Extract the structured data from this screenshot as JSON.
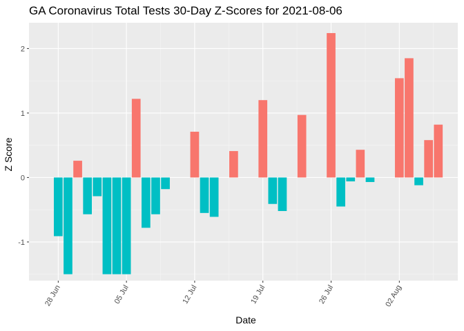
{
  "chart_data": {
    "type": "bar",
    "title": "GA Coronavirus Total Tests 30-Day Z-Scores for 2021-08-06",
    "xlabel": "Date",
    "ylabel": "Z Score",
    "x": [
      "2021-06-28",
      "2021-06-29",
      "2021-06-30",
      "2021-07-01",
      "2021-07-02",
      "2021-07-03",
      "2021-07-04",
      "2021-07-05",
      "2021-07-06",
      "2021-07-07",
      "2021-07-08",
      "2021-07-09",
      "2021-07-10",
      "2021-07-11",
      "2021-07-12",
      "2021-07-13",
      "2021-07-14",
      "2021-07-15",
      "2021-07-16",
      "2021-07-17",
      "2021-07-18",
      "2021-07-19",
      "2021-07-20",
      "2021-07-21",
      "2021-07-22",
      "2021-07-23",
      "2021-07-24",
      "2021-07-25",
      "2021-07-26",
      "2021-07-27",
      "2021-07-28",
      "2021-07-29",
      "2021-07-30",
      "2021-07-31",
      "2021-08-01",
      "2021-08-02",
      "2021-08-03",
      "2021-08-04",
      "2021-08-05",
      "2021-08-06"
    ],
    "values": [
      -0.91,
      -1.5,
      0.26,
      -0.57,
      -0.29,
      -1.5,
      -1.5,
      -1.5,
      1.22,
      -0.78,
      -0.57,
      -0.18,
      0,
      0,
      0.71,
      -0.55,
      -0.61,
      0,
      0.41,
      0,
      0,
      1.2,
      -0.41,
      -0.52,
      0,
      0.97,
      0,
      0,
      2.24,
      -0.45,
      -0.06,
      0.43,
      -0.07,
      0,
      0,
      1.54,
      1.85,
      -0.12,
      0.58,
      0.82
    ],
    "ylim": [
      -1.6,
      2.4
    ],
    "yticks": [
      -1,
      0,
      1,
      2
    ],
    "ytick_labels": [
      "-1",
      "0",
      "1",
      "2"
    ],
    "xticks": [
      "2021-06-28",
      "2021-07-05",
      "2021-07-12",
      "2021-07-19",
      "2021-07-26",
      "2021-08-02"
    ],
    "xtick_labels": [
      "28 Jun",
      "05 Jul",
      "12 Jul",
      "19 Jul",
      "26 Jul",
      "02 Aug"
    ],
    "x_range": [
      "2021-06-25",
      "2021-08-08"
    ],
    "grid": true,
    "legend": "none",
    "colors": {
      "positive": "#f8766d",
      "negative": "#00bfc4",
      "panel": "#ebebeb",
      "grid_major": "#ffffff",
      "grid_minor": "#f5f5f5",
      "tick": "#333333"
    }
  }
}
